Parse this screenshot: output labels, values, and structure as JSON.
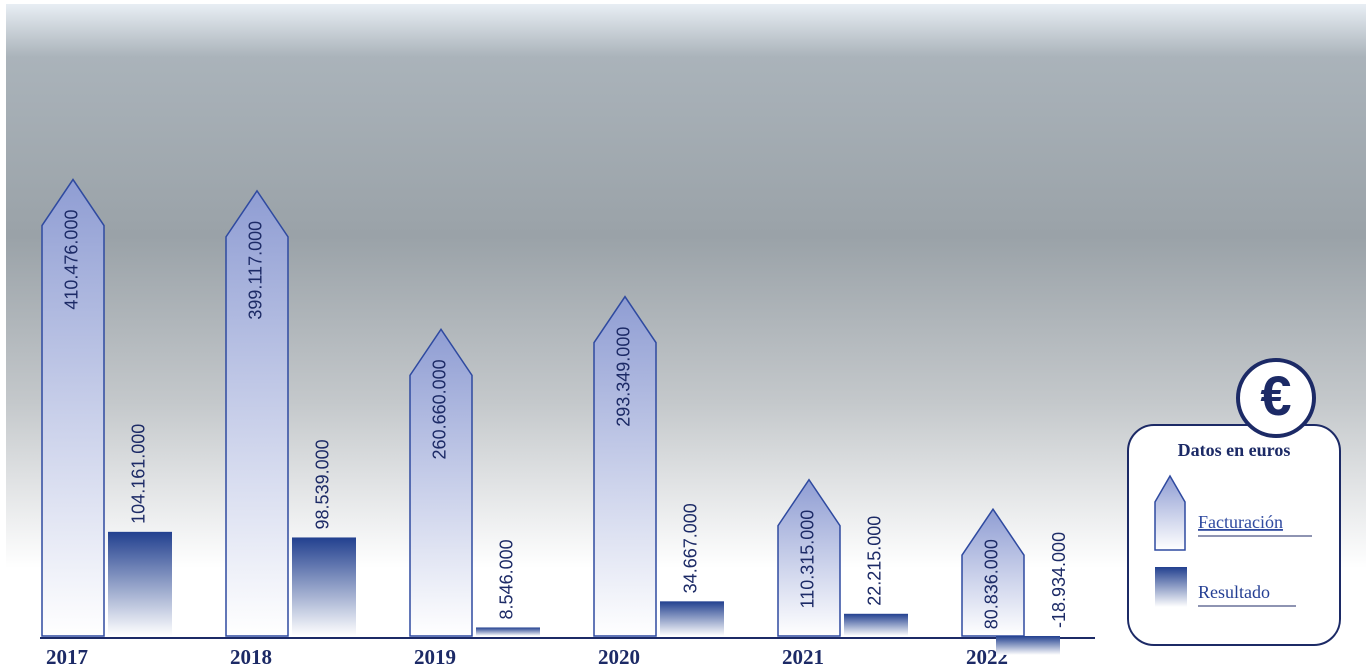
{
  "chart_data": {
    "type": "bar",
    "categories": [
      "2017",
      "2018",
      "2019",
      "2020",
      "2021",
      "2022"
    ],
    "series": [
      {
        "name": "Facturación",
        "color": "#2f4aa0",
        "values": [
          410476000,
          399117000,
          260660000,
          293349000,
          110315000,
          80836000
        ],
        "value_labels": [
          "410.476.000",
          "399.117.000",
          "260.660.000",
          "293.349.000",
          "110.315.000",
          "80.836.000"
        ]
      },
      {
        "name": "Resultado",
        "color": "#243f94",
        "values": [
          104161000,
          98539000,
          8546000,
          34667000,
          22215000,
          -18934000
        ],
        "value_labels": [
          "104.161.000",
          "98.539.000",
          "8.546.000",
          "34.667.000",
          "22.215.000",
          "-18.934.000"
        ]
      }
    ],
    "ylim": [
      -30000000,
      440000000
    ],
    "legend": {
      "title": "Datos en euros",
      "icon": "€"
    }
  }
}
